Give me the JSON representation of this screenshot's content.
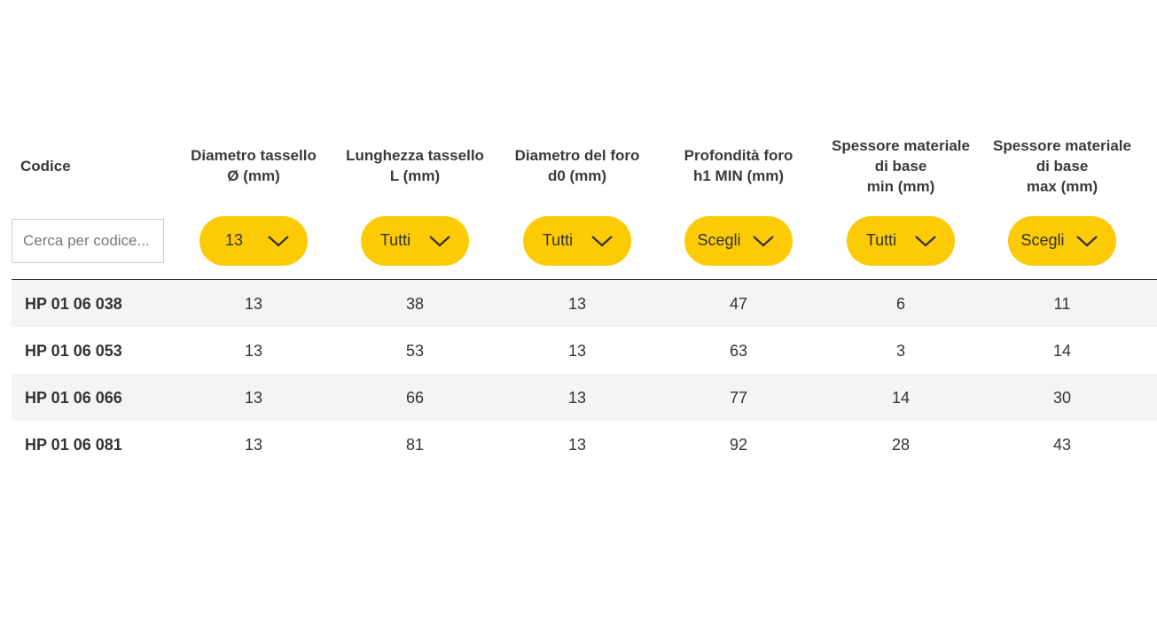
{
  "table": {
    "headers": [
      [
        "Codice"
      ],
      [
        "Diametro tassello",
        "Ø (mm)"
      ],
      [
        "Lunghezza tassello",
        "L (mm)"
      ],
      [
        "Diametro del foro",
        "d0 (mm)"
      ],
      [
        "Profondità foro",
        "h1 MIN (mm)"
      ],
      [
        "Spessore materiale",
        "di base",
        "min (mm)"
      ],
      [
        "Spessore materiale",
        "di base",
        "max (mm)"
      ]
    ],
    "search_placeholder": "Cerca per codice...",
    "filters": [
      "13",
      "Tutti",
      "Tutti",
      "Scegli",
      "Tutti",
      "Scegli"
    ],
    "rows": [
      [
        "HP 01 06 038",
        "13",
        "38",
        "13",
        "47",
        "6",
        "11"
      ],
      [
        "HP 01 06 053",
        "13",
        "53",
        "13",
        "63",
        "3",
        "14"
      ],
      [
        "HP 01 06 066",
        "13",
        "66",
        "13",
        "77",
        "14",
        "30"
      ],
      [
        "HP 01 06 081",
        "13",
        "81",
        "13",
        "92",
        "28",
        "43"
      ]
    ]
  }
}
